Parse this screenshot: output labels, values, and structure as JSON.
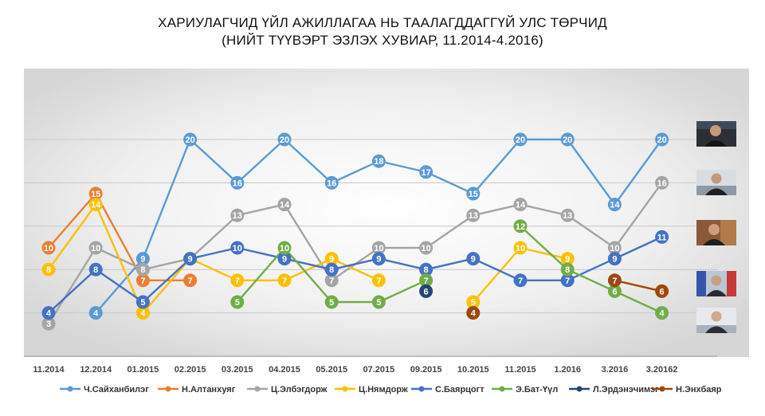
{
  "chart_data": {
    "type": "line",
    "title": "ХАРИУЛАГЧИД ҮЙЛ АЖИЛЛАГАА НЬ ТААЛАГДДАГГҮЙ УЛС ТӨРЧИД",
    "subtitle": "(НИЙТ ТҮҮВЭРТ ЭЗЛЭХ ХУВИАР, 11.2014-4.2016)",
    "categories": [
      "11.2014",
      "12.2014",
      "01.2015",
      "02.2015",
      "03.2015",
      "04.2015",
      "05.2015",
      "07.2015",
      "09.2015",
      "10.2015",
      "11.2015",
      "1.2016",
      "3.2016",
      "3.20162"
    ],
    "ylim": [
      0,
      24
    ],
    "grid": true,
    "legend": "bottom",
    "series": [
      {
        "name": "Ч.Сайханбилэг",
        "color": "#5b9bd5",
        "values": [
          null,
          4,
          9,
          20,
          16,
          20,
          16,
          18,
          17,
          15,
          20,
          20,
          14,
          20
        ]
      },
      {
        "name": "Н.Алтанхуяг",
        "color": "#ed7d31",
        "values": [
          10,
          15,
          7,
          7,
          null,
          null,
          null,
          null,
          null,
          null,
          null,
          null,
          null,
          null
        ]
      },
      {
        "name": "Ц.Элбэгдорж",
        "color": "#a5a5a5",
        "values": [
          3,
          10,
          8,
          9,
          13,
          14,
          7,
          10,
          10,
          13,
          14,
          13,
          10,
          16
        ]
      },
      {
        "name": "Ц.Нямдорж",
        "color": "#ffc000",
        "values": [
          8,
          14,
          4,
          9,
          7,
          7,
          9,
          7,
          null,
          5,
          10,
          9,
          null,
          null
        ]
      },
      {
        "name": "С.Баярцогт",
        "color": "#4472c4",
        "values": [
          4,
          8,
          5,
          9,
          10,
          9,
          8,
          9,
          8,
          9,
          7,
          7,
          9,
          11
        ]
      },
      {
        "name": "Э.Бат-Үүл",
        "color": "#70ad47",
        "values": [
          null,
          null,
          null,
          null,
          5,
          10,
          5,
          5,
          7,
          null,
          12,
          8,
          6,
          4
        ]
      },
      {
        "name": "Л.Эрдэнэчимэг",
        "color": "#264478",
        "values": [
          null,
          null,
          null,
          null,
          null,
          null,
          null,
          null,
          6,
          null,
          null,
          null,
          null,
          null
        ]
      },
      {
        "name": "Н.Энхбаяр",
        "color": "#9e480e",
        "values": [
          null,
          null,
          null,
          null,
          null,
          null,
          null,
          null,
          null,
          4,
          null,
          null,
          7,
          6
        ]
      }
    ]
  }
}
